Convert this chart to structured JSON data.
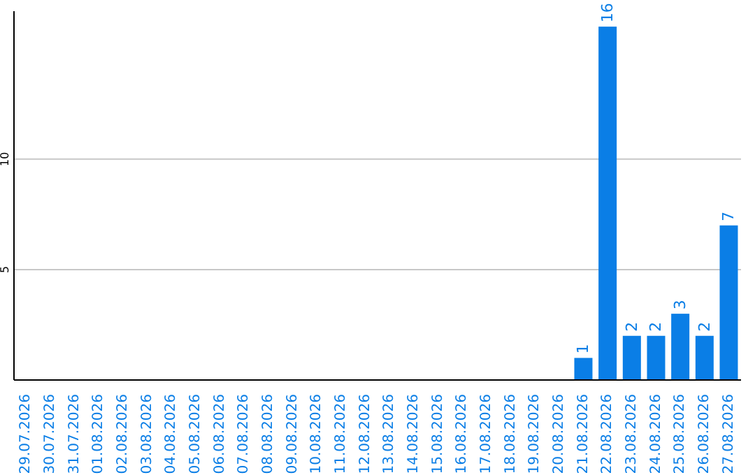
{
  "chart_data": {
    "type": "bar",
    "categories": [
      "29.07.2026",
      "30.07.2026",
      "31.07.2026",
      "01.08.2026",
      "02.08.2026",
      "03.08.2026",
      "04.08.2026",
      "05.08.2026",
      "06.08.2026",
      "07.08.2026",
      "08.08.2026",
      "09.08.2026",
      "10.08.2026",
      "11.08.2026",
      "12.08.2026",
      "13.08.2026",
      "14.08.2026",
      "15.08.2026",
      "16.08.2026",
      "17.08.2026",
      "18.08.2026",
      "19.08.2026",
      "20.08.2026",
      "21.08.2026",
      "22.08.2026",
      "23.08.2026",
      "24.08.2026",
      "25.08.2026",
      "26.08.2026",
      "27.08.2026"
    ],
    "values": [
      0,
      0,
      0,
      0,
      0,
      0,
      0,
      0,
      0,
      0,
      0,
      0,
      0,
      0,
      0,
      0,
      0,
      0,
      0,
      0,
      0,
      0,
      0,
      1,
      16,
      2,
      2,
      3,
      2,
      7
    ],
    "value_labels": [
      null,
      null,
      null,
      null,
      null,
      null,
      null,
      null,
      null,
      null,
      null,
      null,
      null,
      null,
      null,
      null,
      null,
      null,
      null,
      null,
      null,
      null,
      null,
      "1",
      "16",
      "2",
      "2",
      "3",
      "2",
      "7"
    ],
    "color": "#0a7ee6",
    "ylim": [
      0,
      16.7
    ],
    "yticks": [
      5,
      10
    ],
    "grid": "y"
  }
}
